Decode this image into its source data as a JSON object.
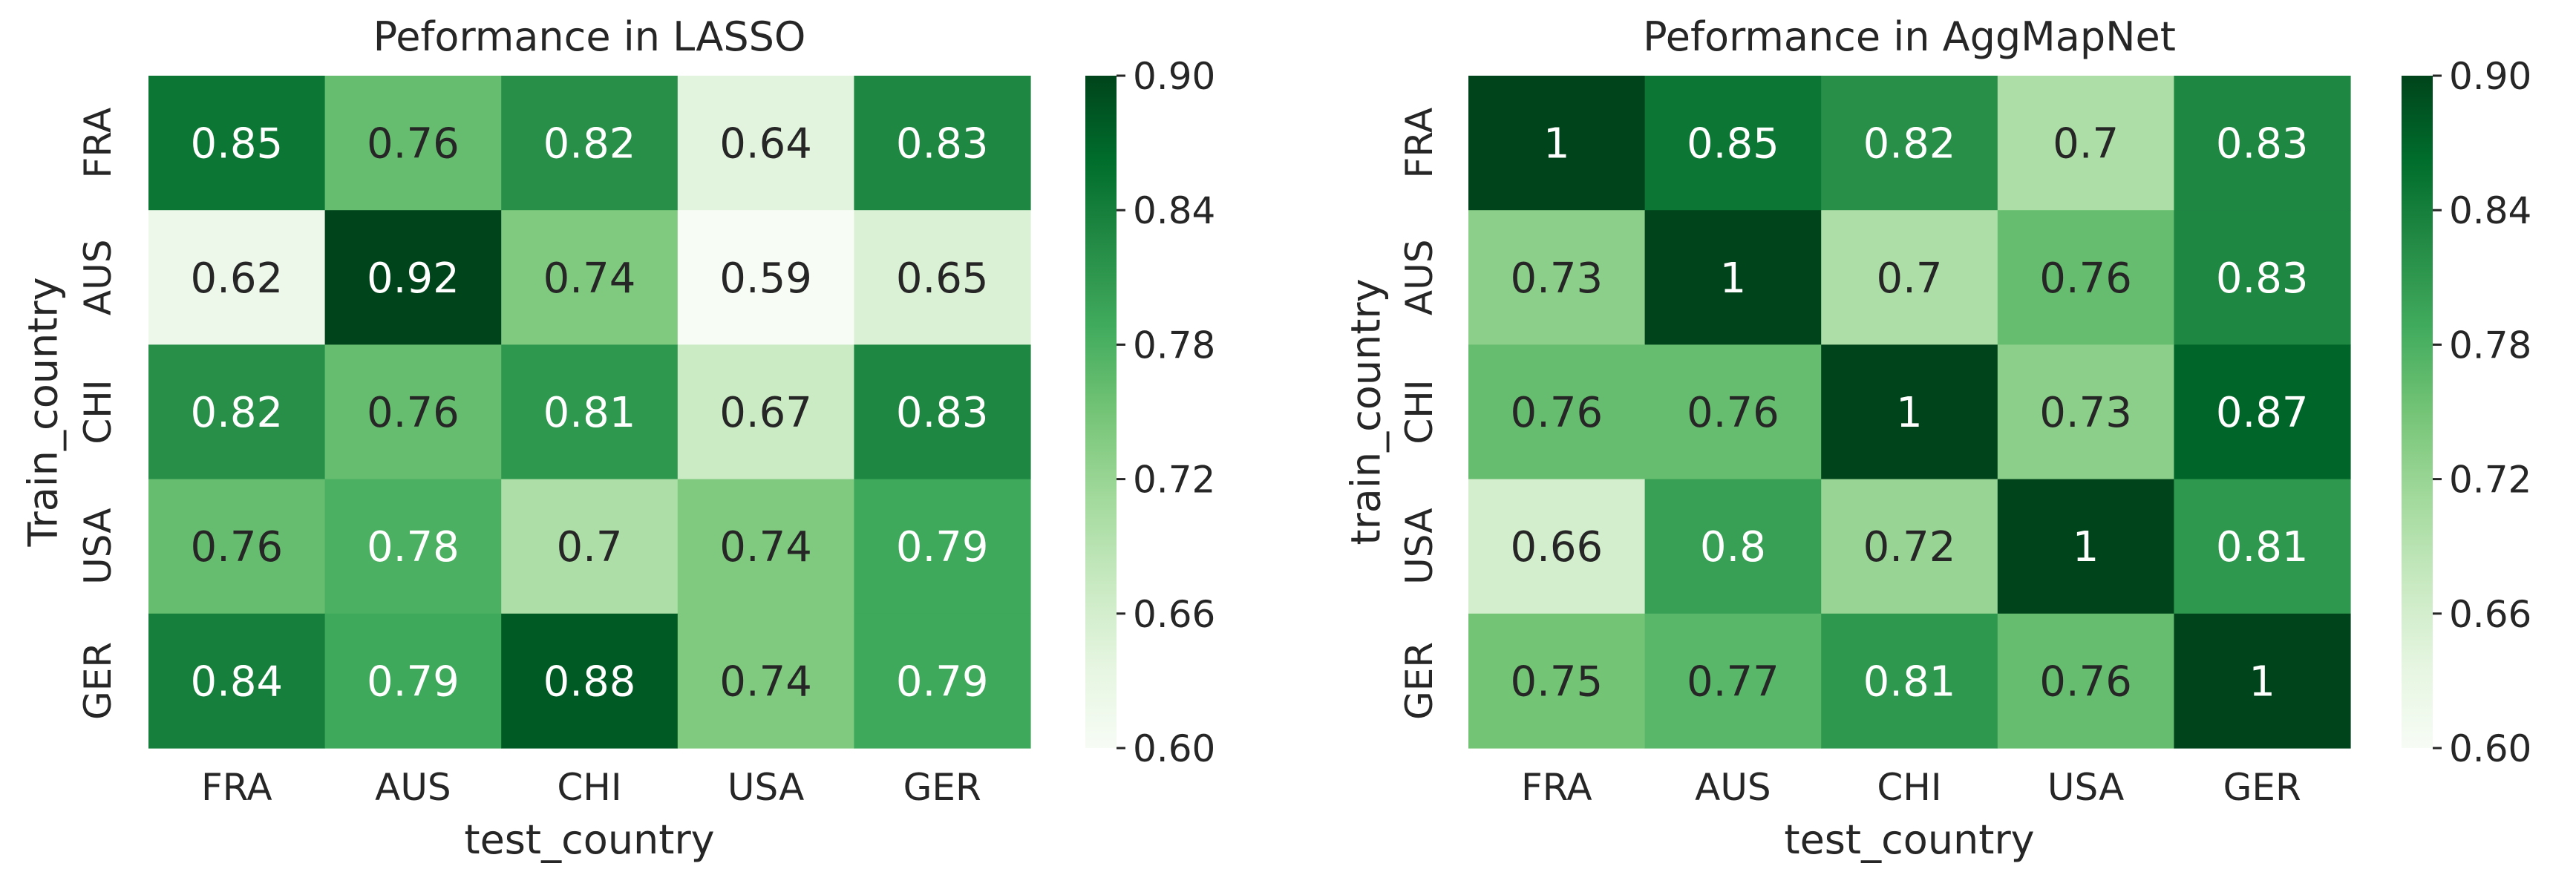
{
  "chart_data": [
    {
      "type": "heatmap",
      "title": "Peformance in LASSO",
      "xlabel": "test_country",
      "ylabel": "Train_country",
      "x_categories": [
        "FRA",
        "AUS",
        "CHI",
        "USA",
        "GER"
      ],
      "y_categories": [
        "FRA",
        "AUS",
        "CHI",
        "USA",
        "GER"
      ],
      "values": [
        [
          0.85,
          0.76,
          0.82,
          0.64,
          0.83
        ],
        [
          0.62,
          0.92,
          0.74,
          0.59,
          0.65
        ],
        [
          0.82,
          0.76,
          0.81,
          0.67,
          0.83
        ],
        [
          0.76,
          0.78,
          0.7,
          0.74,
          0.79
        ],
        [
          0.84,
          0.79,
          0.88,
          0.74,
          0.79
        ]
      ],
      "cell_labels": [
        [
          "0.85",
          "0.76",
          "0.82",
          "0.64",
          "0.83"
        ],
        [
          "0.62",
          "0.92",
          "0.74",
          "0.59",
          "0.65"
        ],
        [
          "0.82",
          "0.76",
          "0.81",
          "0.67",
          "0.83"
        ],
        [
          "0.76",
          "0.78",
          "0.7",
          "0.74",
          "0.79"
        ],
        [
          "0.84",
          "0.79",
          "0.88",
          "0.74",
          "0.79"
        ]
      ],
      "colorbar": {
        "vmin": 0.6,
        "vmax": 0.9,
        "ticks": [
          "0.60",
          "0.66",
          "0.72",
          "0.78",
          "0.84",
          "0.90"
        ],
        "colormap": "Greens"
      }
    },
    {
      "type": "heatmap",
      "title": "Peformance in AggMapNet",
      "xlabel": "test_country",
      "ylabel": "train_country",
      "x_categories": [
        "FRA",
        "AUS",
        "CHI",
        "USA",
        "GER"
      ],
      "y_categories": [
        "FRA",
        "AUS",
        "CHI",
        "USA",
        "GER"
      ],
      "values": [
        [
          1.0,
          0.85,
          0.82,
          0.7,
          0.83
        ],
        [
          0.73,
          1.0,
          0.7,
          0.76,
          0.83
        ],
        [
          0.76,
          0.76,
          1.0,
          0.73,
          0.87
        ],
        [
          0.66,
          0.8,
          0.72,
          1.0,
          0.81
        ],
        [
          0.75,
          0.77,
          0.81,
          0.76,
          1.0
        ]
      ],
      "cell_labels": [
        [
          "1",
          "0.85",
          "0.82",
          "0.7",
          "0.83"
        ],
        [
          "0.73",
          "1",
          "0.7",
          "0.76",
          "0.83"
        ],
        [
          "0.76",
          "0.76",
          "1",
          "0.73",
          "0.87"
        ],
        [
          "0.66",
          "0.8",
          "0.72",
          "1",
          "0.81"
        ],
        [
          "0.75",
          "0.77",
          "0.81",
          "0.76",
          "1"
        ]
      ],
      "colorbar": {
        "vmin": 0.6,
        "vmax": 0.9,
        "ticks": [
          "0.60",
          "0.66",
          "0.72",
          "0.78",
          "0.84",
          "0.90"
        ],
        "colormap": "Greens"
      }
    }
  ]
}
